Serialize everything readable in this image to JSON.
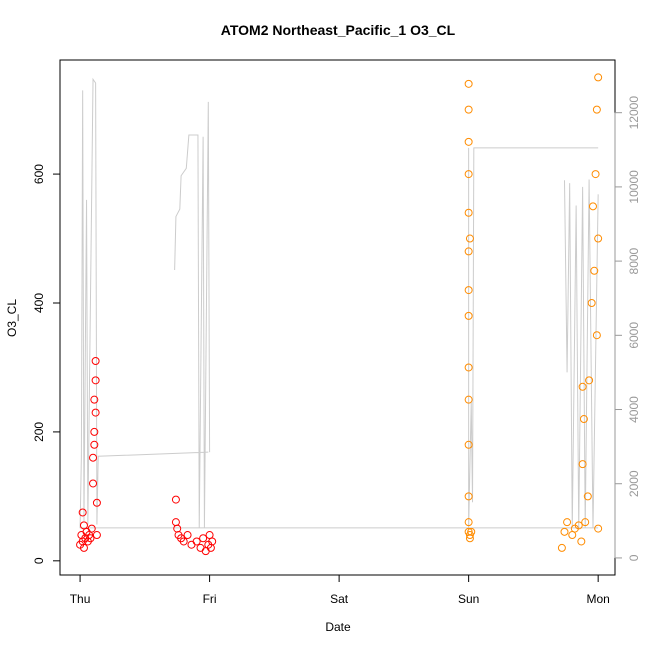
{
  "chart_data": {
    "type": "scatter",
    "title": "ATOM2 Northeast_Pacific_1 O3_CL",
    "x_label": "Date",
    "y_label": "O3_CL",
    "xlim": [
      -0.155,
      4.13
    ],
    "xticks": [
      {
        "value": 0,
        "label": "Thu"
      },
      {
        "value": 1,
        "label": "Fri"
      },
      {
        "value": 2,
        "label": "Sat"
      },
      {
        "value": 3,
        "label": "Sun"
      },
      {
        "value": 4,
        "label": "Mon"
      }
    ],
    "ylim": [
      -22,
      777
    ],
    "yticks": [
      0,
      200,
      400,
      600
    ],
    "y2lim": [
      -460,
      13420
    ],
    "y2ticks": [
      0,
      2000,
      4000,
      6000,
      8000,
      10000,
      12000
    ],
    "series": [
      {
        "color": "#cccccc",
        "axis": "y2",
        "x": [
          0,
          0.01,
          0.02,
          0.03,
          0.05,
          0.06,
          0.1,
          0.12,
          0.13,
          0.14,
          0.99,
          null,
          0.73,
          0.74,
          0.77,
          0.78,
          0.82,
          0.84,
          0.91,
          0.92,
          0.95,
          0.96,
          0.99,
          1.0,
          null,
          0,
          4.0,
          null,
          3.0,
          3.0,
          3.02,
          3.03,
          3.04,
          4.0,
          null,
          3.74,
          3.76,
          3.78,
          3.8,
          3.83,
          3.85,
          3.88,
          3.9,
          3.93,
          3.96,
          4.0
        ],
        "values": [
          800,
          2720,
          12600,
          1000,
          9650,
          900,
          12900,
          12800,
          900,
          2740,
          2850,
          null,
          7760,
          9200,
          9400,
          10300,
          10500,
          11400,
          11400,
          800,
          11350,
          800,
          12290,
          2850,
          null,
          810,
          810,
          null,
          11050,
          800,
          4200,
          1500,
          11050,
          11050,
          null,
          10180,
          5000,
          10100,
          800,
          9500,
          800,
          10000,
          800,
          10200,
          800,
          9800
        ]
      },
      {
        "color": "#ff0000",
        "x": [
          0,
          0.01,
          0.02,
          0.02,
          0.03,
          0.03,
          0.04,
          0.05,
          0.06,
          0.07,
          0.08,
          0.09,
          0.1,
          0.1,
          0.11,
          0.11,
          0.11,
          0.12,
          0.12,
          0.12,
          0.13,
          0.13,
          0.74,
          0.74,
          0.75,
          0.76,
          0.78,
          0.8,
          0.83,
          0.86,
          0.9,
          0.93,
          0.95,
          0.97,
          0.99,
          1.0,
          1.01,
          1.02
        ],
        "values": [
          25,
          40,
          30,
          75,
          20,
          55,
          35,
          45,
          30,
          40,
          35,
          50,
          120,
          160,
          200,
          250,
          180,
          280,
          310,
          230,
          90,
          40,
          95,
          60,
          50,
          40,
          35,
          30,
          40,
          25,
          30,
          20,
          35,
          15,
          25,
          40,
          20,
          30
        ]
      },
      {
        "color": "#ff8c00",
        "x": [
          3.0,
          3.0,
          3.0,
          3.0,
          3.0,
          3.0,
          3.0,
          3.0,
          3.0,
          3.0,
          3.0,
          3.0,
          3.0,
          3.0,
          3.01,
          3.01,
          3.01,
          3.02,
          3.72,
          3.74,
          3.76,
          3.8,
          3.82,
          3.85,
          3.87,
          3.88,
          3.88,
          3.89,
          3.9,
          3.92,
          3.93,
          3.95,
          3.96,
          3.97,
          3.98,
          3.99,
          3.99,
          4.0,
          4.0,
          4.0
        ],
        "values": [
          740,
          700,
          650,
          600,
          540,
          480,
          420,
          380,
          300,
          250,
          180,
          100,
          60,
          45,
          500,
          40,
          35,
          45,
          20,
          45,
          60,
          40,
          50,
          55,
          30,
          150,
          270,
          220,
          60,
          100,
          280,
          400,
          550,
          450,
          600,
          700,
          350,
          500,
          750,
          50
        ]
      }
    ]
  }
}
